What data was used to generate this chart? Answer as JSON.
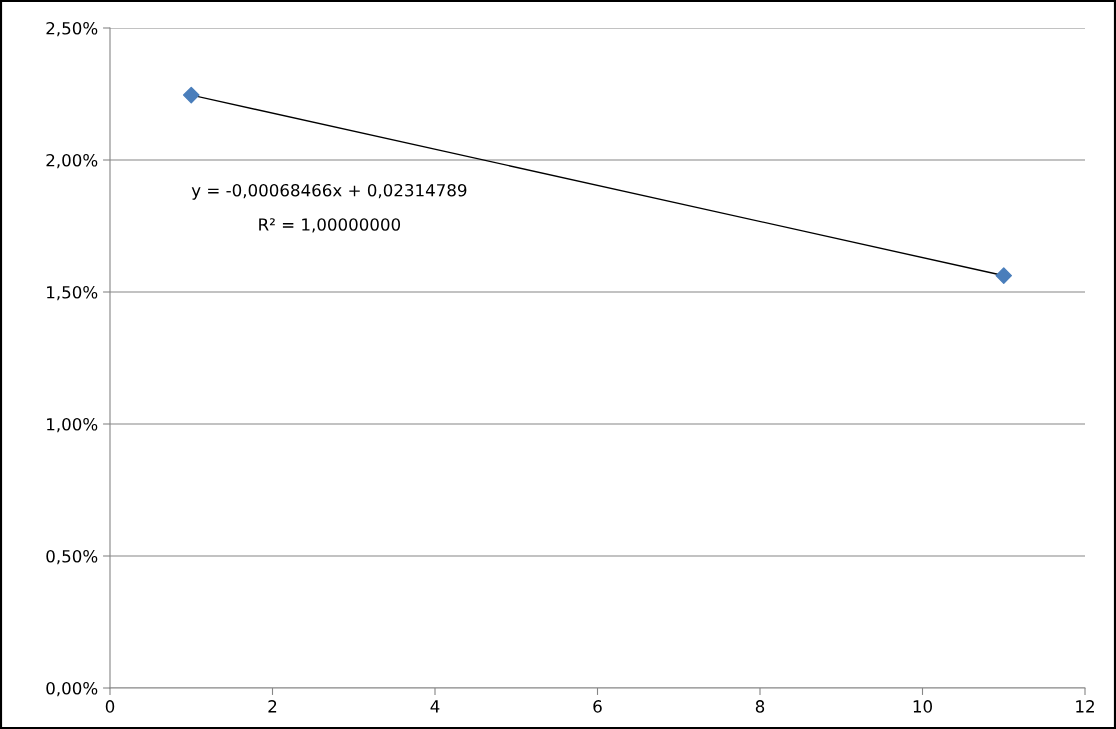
{
  "chart_data": {
    "type": "scatter",
    "series": [
      {
        "color": "#4a7ebb",
        "marker": "diamond",
        "values": [
          2.246,
          1.562
        ]
      },
      {
        "type": "line",
        "color": "#000000",
        "marker": "none",
        "line_style": "solid",
        "values": [
          2.246,
          1.562
        ]
      }
    ],
    "x": [
      1,
      11
    ],
    "xlim": [
      0,
      12
    ],
    "xticks": [
      0,
      2,
      4,
      6,
      8,
      10,
      12
    ],
    "ylim": [
      0,
      2.5
    ],
    "yticks": [
      {
        "value": 0,
        "label": "0,00%"
      },
      {
        "value": 0.5,
        "label": "0,50%"
      },
      {
        "value": 1.0,
        "label": "1,00%"
      },
      {
        "value": 1.5,
        "label": "1,50%"
      },
      {
        "value": 2.0,
        "label": "2,00%"
      },
      {
        "value": 2.5,
        "label": "2,50%"
      }
    ],
    "grid": "y",
    "annotations": [
      "y = -0,00068466x + 0,02314789",
      "R² = 1,00000000"
    ]
  }
}
